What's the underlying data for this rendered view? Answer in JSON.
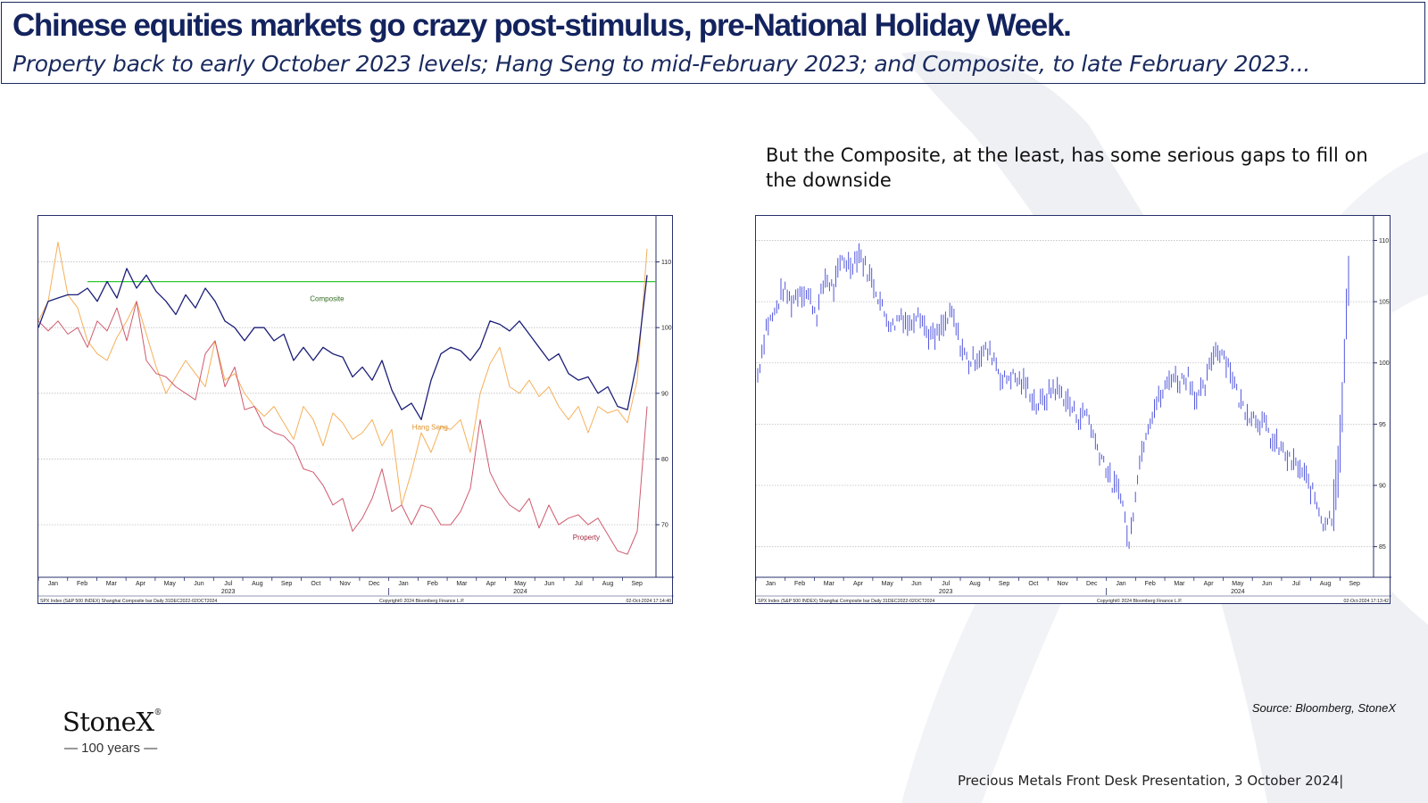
{
  "slide": {
    "title": "Chinese equities markets go crazy post-stimulus, pre-National Holiday Week.",
    "subtitle": "Property back to early October 2023 levels; Hang Seng to mid-February 2023; and Composite, to late February 2023...",
    "annotation": "But the Composite, at the least, has some serious gaps to fill on the downside",
    "source": "Source: Bloomberg, StoneX",
    "footer": "Precious Metals Front Desk Presentation, 3 October 2024|",
    "logo_name": "StoneX",
    "logo_mark": "®",
    "logo_sub": "— 100 years —"
  },
  "colors": {
    "title": "#13235e",
    "composite": "#1c1f78",
    "hang_seng": "#f5b05a",
    "property": "#cf5a6e",
    "bar_series": "#3f45d8",
    "threshold": "#2ec82e"
  },
  "chart_data": [
    {
      "type": "line",
      "months": [
        "Jan",
        "Feb",
        "Mar",
        "Apr",
        "May",
        "Jun",
        "Jul",
        "Aug",
        "Sep",
        "Oct",
        "Nov",
        "Dec",
        "Jan",
        "Feb",
        "Mar",
        "Apr",
        "May",
        "Jun",
        "Jul",
        "Aug",
        "Sep"
      ],
      "year_labels": [
        {
          "label": "2023",
          "month_index": 6
        },
        {
          "label": "2024",
          "month_index": 16
        }
      ],
      "yticks": [
        70,
        80,
        90,
        100,
        110
      ],
      "ylim": [
        62,
        117
      ],
      "grid": true,
      "threshold": 107,
      "series": [
        {
          "name": "Composite",
          "label_at": [
            9.3,
            104
          ],
          "values": [
            100,
            104,
            104.5,
            105,
            105,
            106,
            104,
            107,
            104.5,
            109,
            106,
            108,
            105.5,
            104,
            102,
            105,
            103,
            106,
            104,
            101,
            100,
            98,
            100,
            100,
            98,
            99,
            95,
            97,
            95,
            97,
            96,
            95.5,
            92.5,
            94,
            92,
            95,
            90.5,
            87.5,
            88.5,
            86,
            92,
            96,
            97,
            96.5,
            95,
            97,
            101,
            100.5,
            99.5,
            101,
            99,
            97,
            95,
            96,
            93,
            92,
            92.5,
            90,
            91,
            88,
            87.5,
            95,
            108
          ]
        },
        {
          "name": "Hang Seng",
          "label_at": [
            12.8,
            84.5
          ],
          "values": [
            101,
            104,
            113,
            105,
            103,
            98,
            96,
            95,
            98.5,
            101,
            104,
            99,
            94,
            90,
            92.5,
            95,
            93,
            91,
            98,
            92,
            93,
            90,
            88,
            86.5,
            88,
            85.5,
            83,
            88,
            86,
            82,
            87,
            85.5,
            83,
            84,
            86,
            82,
            84.5,
            73,
            78,
            84,
            81,
            85,
            84.5,
            86,
            81,
            90,
            94.5,
            97,
            91,
            90,
            92,
            89.5,
            91,
            88,
            86,
            88,
            84,
            88,
            87,
            87.5,
            85.5,
            92,
            112
          ]
        },
        {
          "name": "Property",
          "label_at": [
            18.3,
            67.7
          ],
          "values": [
            101,
            99.5,
            101,
            99,
            100,
            97,
            101,
            99.5,
            103,
            98,
            104,
            95,
            93,
            92.5,
            91,
            90,
            89,
            96,
            98,
            91,
            94,
            87.5,
            88,
            85,
            84,
            83.5,
            82,
            78.5,
            78,
            76,
            73,
            74,
            69,
            71,
            74,
            78.5,
            72,
            73,
            70,
            73,
            72.5,
            70,
            70,
            72,
            75.5,
            86,
            78,
            75,
            73,
            72,
            74,
            69.5,
            73,
            70,
            71,
            71.5,
            70,
            71,
            68.5,
            66,
            65.5,
            69,
            88
          ]
        }
      ]
    },
    {
      "type": "bar",
      "name": "Shanghai Composite bar",
      "months": [
        "Jan",
        "Feb",
        "Mar",
        "Apr",
        "May",
        "Jun",
        "Jul",
        "Aug",
        "Sep",
        "Oct",
        "Nov",
        "Dec",
        "Jan",
        "Feb",
        "Mar",
        "Apr",
        "May",
        "Jun",
        "Jul",
        "Aug",
        "Sep"
      ],
      "year_labels": [
        {
          "label": "2023",
          "month_index": 6
        },
        {
          "label": "2024",
          "month_index": 16
        }
      ],
      "yticks": [
        85,
        90,
        95,
        100,
        105,
        110
      ],
      "ylim": [
        82.5,
        112
      ],
      "grid": true,
      "values": [
        99,
        103,
        104,
        106,
        105,
        106,
        105.5,
        104,
        107,
        106,
        108.5,
        108,
        109,
        107.5,
        106,
        104,
        103,
        104,
        103,
        104.5,
        102.5,
        102,
        103,
        104,
        101.5,
        100,
        100.5,
        101,
        100.5,
        98.5,
        99,
        98.5,
        98,
        96.5,
        97,
        98,
        97.5,
        96.5,
        95.5,
        96,
        93.5,
        92,
        90,
        89.5,
        85,
        91,
        94.5,
        96.5,
        97.5,
        99,
        98.5,
        99,
        97,
        98,
        101,
        101,
        99.5,
        97,
        96,
        95.5,
        95,
        93.5,
        93,
        92,
        91.5,
        90.5,
        89,
        87,
        87.5,
        93,
        107
      ]
    }
  ],
  "chart_footers": [
    {
      "left": "SPX Index (S&P 500 INDEX) Shanghai Composite bar  Daily 31DEC2022-02OCT2024",
      "mid": "Copyright© 2024 Bloomberg Finance L.P.",
      "right": "02-Oct-2024 17:14:40"
    },
    {
      "left": "SPX Index (S&P 500 INDEX) Shanghai Composite bar  Daily 31DEC2022-02OCT2024",
      "mid": "Copyright© 2024 Bloomberg Finance L.P.",
      "right": "02-Oct-2024 17:13:42"
    }
  ]
}
